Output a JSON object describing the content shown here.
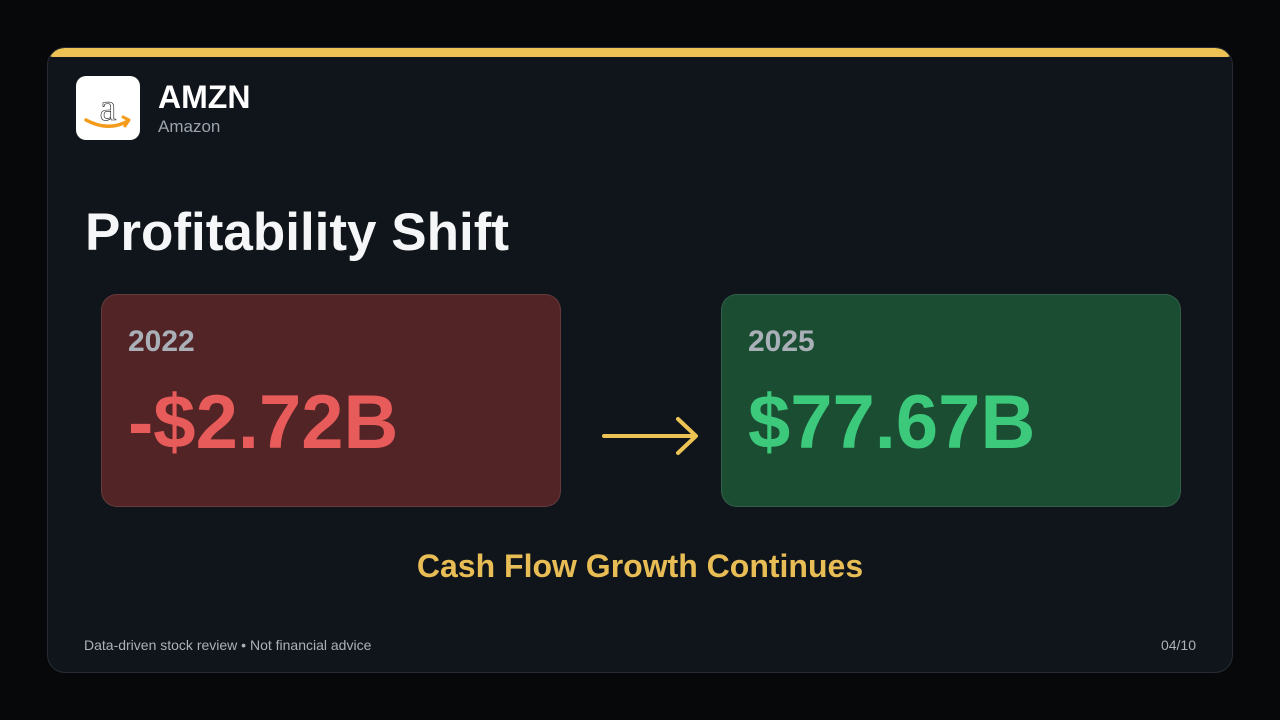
{
  "header": {
    "ticker": "AMZN",
    "company": "Amazon",
    "logo_icon": "amazon-logo"
  },
  "title": "Profitability Shift",
  "comparison": {
    "before": {
      "year": "2022",
      "value": "-$2.72B",
      "color": "#e85b5b"
    },
    "after": {
      "year": "2025",
      "value": "$77.67B",
      "color": "#3cc97b"
    },
    "arrow_icon": "right-arrow-icon"
  },
  "subtitle": "Cash Flow Growth Continues",
  "footer": {
    "note": "Data-driven stock review • Not financial advice",
    "page": "04/10"
  },
  "colors": {
    "accent": "#ecc354",
    "background": "#10151b",
    "negative_box": "#532426",
    "positive_box": "#1b4d33"
  }
}
